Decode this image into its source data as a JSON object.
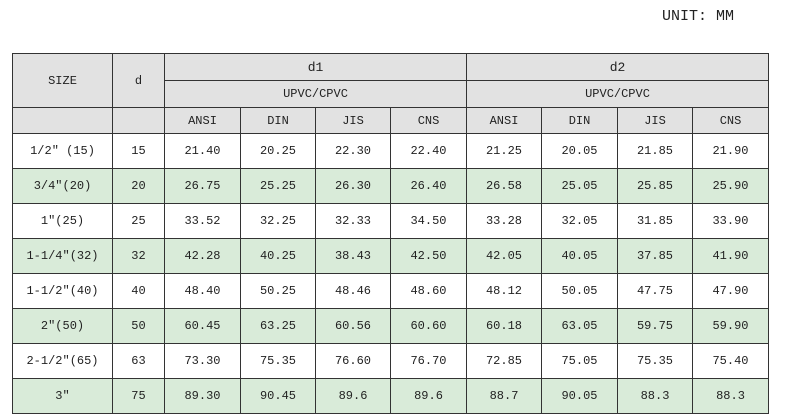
{
  "unit_label": "UNIT: MM",
  "header": {
    "size": "SIZE",
    "d": "d",
    "d1": "d1",
    "d2": "d2",
    "material_d1": "UPVC/CPVC",
    "material_d2": "UPVC/CPVC",
    "standards": [
      "ANSI",
      "DIN",
      "JIS",
      "CNS",
      "ANSI",
      "DIN",
      "JIS",
      "CNS"
    ]
  },
  "colors": {
    "header_bg": "#e2e2e2",
    "alt_row_bg": "#d9ebd9"
  },
  "rows": [
    {
      "size": "1/2″ (15)",
      "d": "15",
      "values": [
        "21.40",
        "20.25",
        "22.30",
        "22.40",
        "21.25",
        "20.05",
        "21.85",
        "21.90"
      ]
    },
    {
      "size": "3/4″(20)",
      "d": "20",
      "values": [
        "26.75",
        "25.25",
        "26.30",
        "26.40",
        "26.58",
        "25.05",
        "25.85",
        "25.90"
      ]
    },
    {
      "size": "1″(25)",
      "d": "25",
      "values": [
        "33.52",
        "32.25",
        "32.33",
        "34.50",
        "33.28",
        "32.05",
        "31.85",
        "33.90"
      ]
    },
    {
      "size": "1-1/4″(32)",
      "d": "32",
      "values": [
        "42.28",
        "40.25",
        "38.43",
        "42.50",
        "42.05",
        "40.05",
        "37.85",
        "41.90"
      ]
    },
    {
      "size": "1-1/2″(40)",
      "d": "40",
      "values": [
        "48.40",
        "50.25",
        "48.46",
        "48.60",
        "48.12",
        "50.05",
        "47.75",
        "47.90"
      ]
    },
    {
      "size": "2″(50)",
      "d": "50",
      "values": [
        "60.45",
        "63.25",
        "60.56",
        "60.60",
        "60.18",
        "63.05",
        "59.75",
        "59.90"
      ]
    },
    {
      "size": "2-1/2″(65)",
      "d": "63",
      "values": [
        "73.30",
        "75.35",
        "76.60",
        "76.70",
        "72.85",
        "75.05",
        "75.35",
        "75.40"
      ]
    },
    {
      "size": "3″",
      "d": "75",
      "values": [
        "89.30",
        "90.45",
        "89.6",
        "89.6",
        "88.7",
        "90.05",
        "88.3",
        "88.3"
      ]
    }
  ]
}
